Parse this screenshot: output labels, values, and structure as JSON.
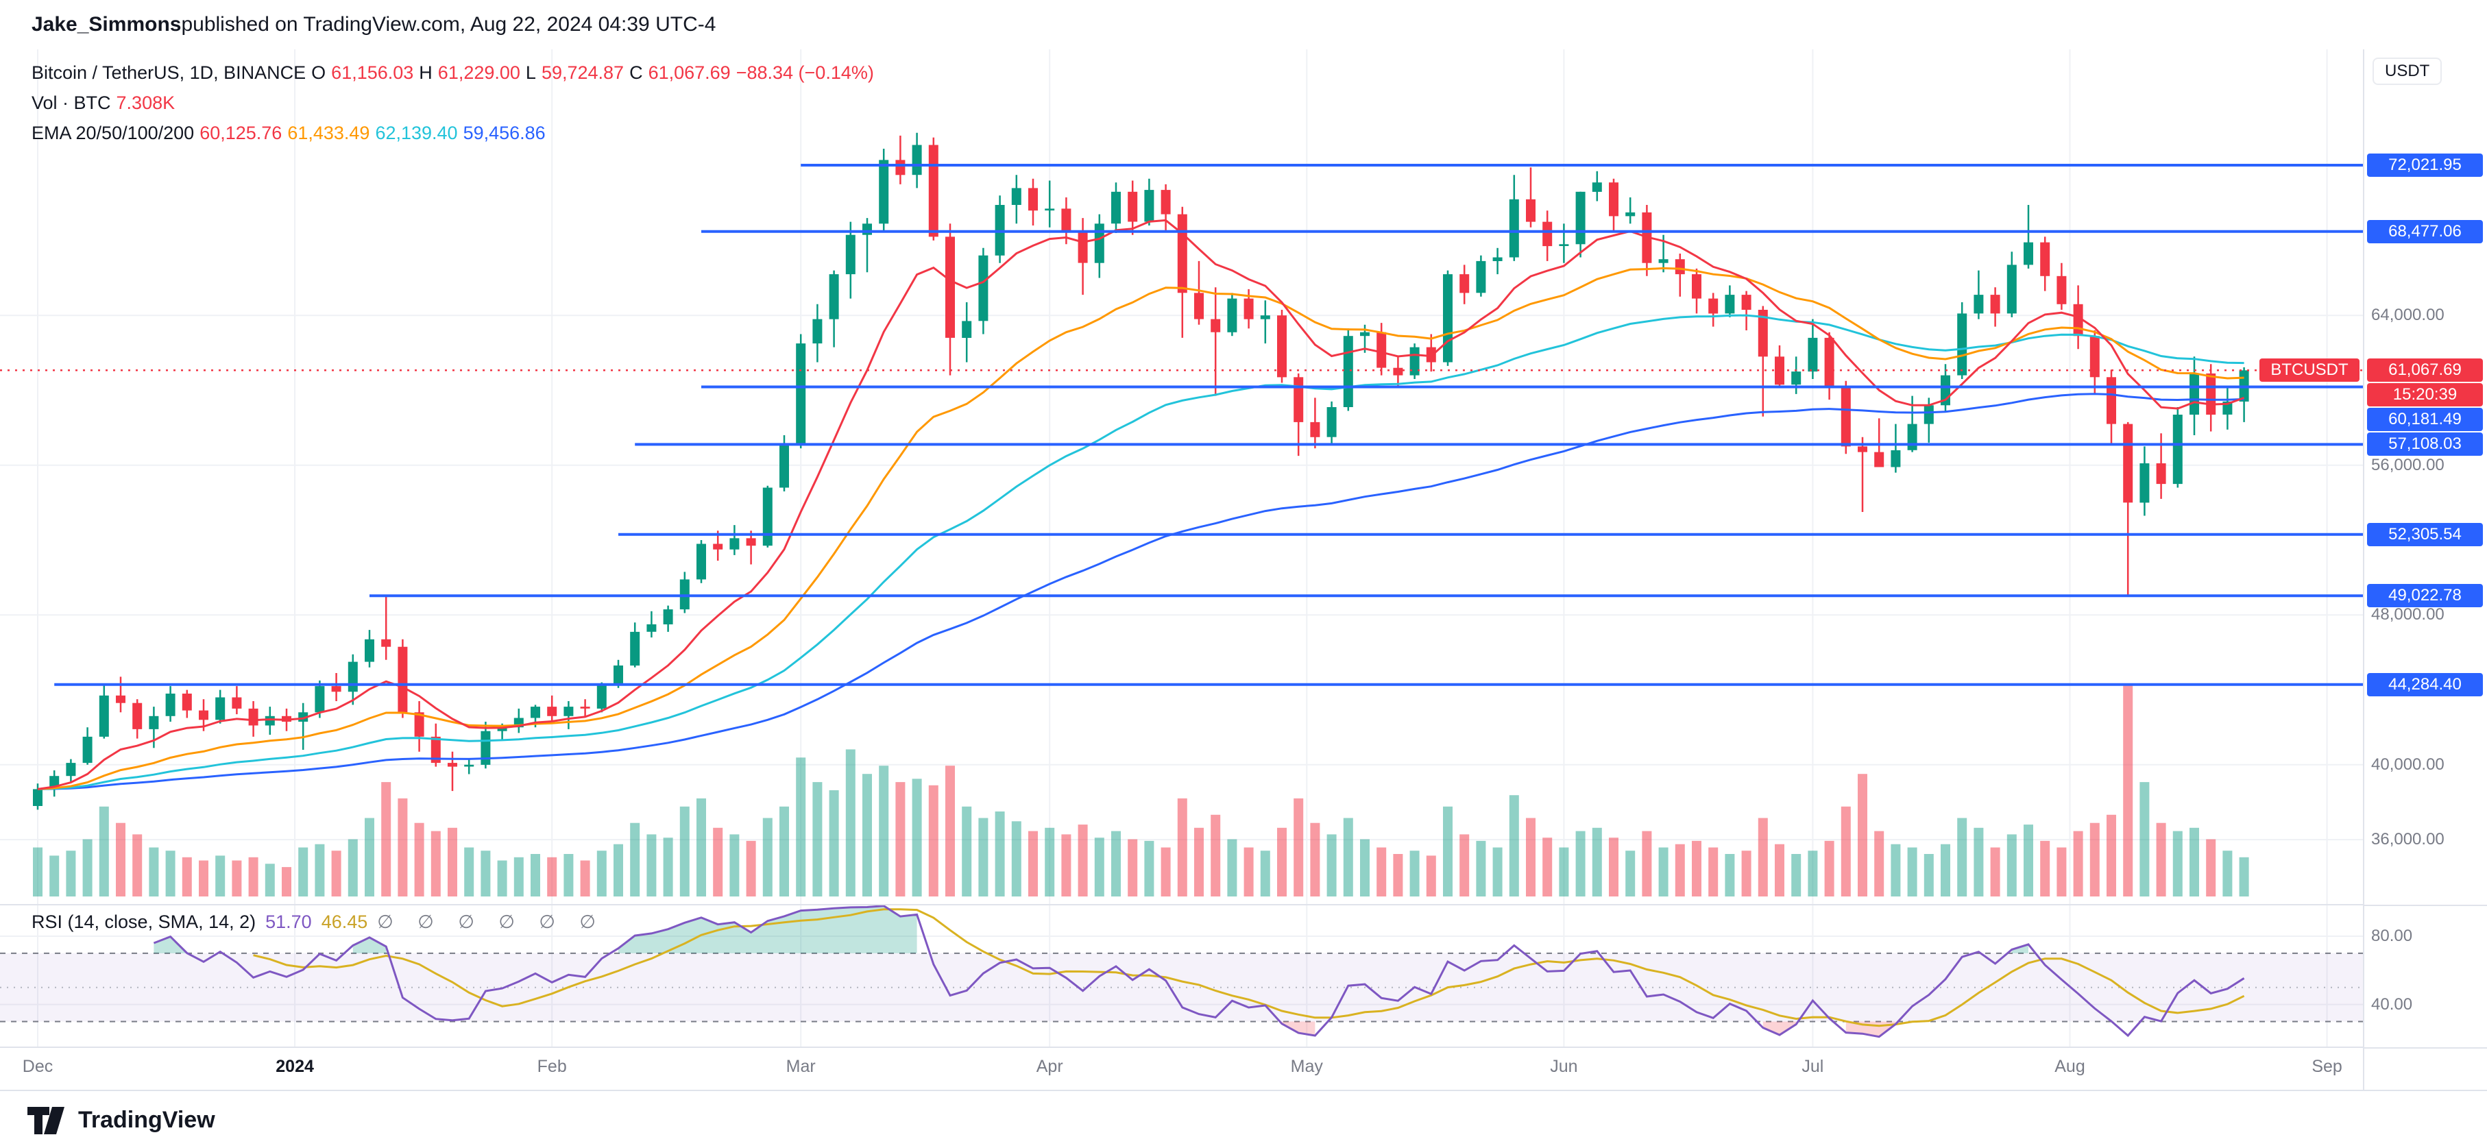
{
  "header": {
    "author": "Jake_Simmons",
    "suffix": " published on TradingView.com, Aug 22, 2024 04:39 UTC-4"
  },
  "legend": {
    "symbol": "Bitcoin / TetherUS, 1D, BINANCE",
    "o_label": "O",
    "o": "61,156.03",
    "h_label": "H",
    "h": "61,229.00",
    "l_label": "L",
    "l": "59,724.87",
    "c_label": "C",
    "c": "61,067.69",
    "change": "−88.34 (−0.14%)",
    "vol_label": "Vol · BTC",
    "vol_value": "7.308K",
    "ema_label": "EMA 20/50/100/200",
    "ema_values": [
      "60,125.76",
      "61,433.49",
      "62,139.40",
      "59,456.86"
    ]
  },
  "rsi_legend": {
    "label": "RSI (14, close, SMA, 14, 2)",
    "rsi_value": "51.70",
    "sma_value": "46.45",
    "empty_badges": "∅ ∅ ∅ ∅ ∅ ∅"
  },
  "price_axis": {
    "currency": "USDT",
    "grid_labels": [
      {
        "price": 64000,
        "text": "64,000.00"
      },
      {
        "price": 56000,
        "text": "56,000.00"
      },
      {
        "price": 48000,
        "text": "48,000.00"
      },
      {
        "price": 40000,
        "text": "40,000.00"
      },
      {
        "price": 36000,
        "text": "36,000.00"
      }
    ],
    "current": {
      "text": "61,067.69",
      "countdown": "15:20:39",
      "tag": "BTCUSDT"
    }
  },
  "rsi_axis": {
    "labels": [
      {
        "value": 80,
        "text": "80.00"
      },
      {
        "value": 40,
        "text": "40.00"
      }
    ]
  },
  "time_axis": {
    "labels": [
      {
        "pos": 0,
        "text": "Dec"
      },
      {
        "pos": 15.5,
        "text": "2024",
        "major": true
      },
      {
        "pos": 31,
        "text": "Feb"
      },
      {
        "pos": 46,
        "text": "Mar"
      },
      {
        "pos": 61,
        "text": "Apr"
      },
      {
        "pos": 76.5,
        "text": "May"
      },
      {
        "pos": 92,
        "text": "Jun"
      },
      {
        "pos": 107,
        "text": "Jul"
      },
      {
        "pos": 122.5,
        "text": "Aug"
      },
      {
        "pos": 138,
        "text": "Sep"
      }
    ]
  },
  "footer": {
    "brand": "TradingView"
  },
  "colors": {
    "up": "#089981",
    "down": "#F23645",
    "volume_up": "rgba(8,153,129,0.45)",
    "volume_down": "rgba(242,54,69,0.5)",
    "ema20": "#F23645",
    "ema50": "#FF9800",
    "ema100": "#22C3DA",
    "ema200": "#2962FF",
    "level_line": "#2962FF",
    "current_price": "#F23645",
    "rsi": "#7E57C2",
    "rsi_sma": "#D9B221",
    "rsi_band_fill": "rgba(126,87,194,0.08)",
    "grid": "#EFF1F5",
    "separator": "#E0E3EB",
    "axis_text": "#787B86"
  },
  "chart_data": {
    "type": "candlestick",
    "title": "Bitcoin / TetherUS, 1D, BINANCE",
    "symbol": "BTCUSDT",
    "exchange": "BINANCE",
    "interval": "1D",
    "price_axis_range": [
      34000,
      78200
    ],
    "candle_format": [
      "open",
      "high",
      "low",
      "close",
      "volume"
    ],
    "bar_span_days": 2,
    "candles": [
      [
        37800,
        39000,
        37600,
        38700,
        30
      ],
      [
        38700,
        39700,
        38300,
        39400,
        25
      ],
      [
        39400,
        40300,
        39100,
        40100,
        28
      ],
      [
        40100,
        42000,
        40000,
        41500,
        35
      ],
      [
        41500,
        44300,
        41400,
        43700,
        55
      ],
      [
        43700,
        44700,
        42800,
        43300,
        45
      ],
      [
        43300,
        43500,
        41400,
        41900,
        38
      ],
      [
        41900,
        43100,
        40900,
        42600,
        30
      ],
      [
        42600,
        44200,
        42300,
        43800,
        28
      ],
      [
        43800,
        44000,
        42500,
        42900,
        24
      ],
      [
        42900,
        43500,
        41800,
        42400,
        22
      ],
      [
        42400,
        44000,
        42200,
        43600,
        25
      ],
      [
        43600,
        44200,
        42700,
        43000,
        22
      ],
      [
        43000,
        43400,
        41500,
        42100,
        24
      ],
      [
        42100,
        43100,
        41600,
        42600,
        20
      ],
      [
        42600,
        43000,
        41800,
        42300,
        18
      ],
      [
        42300,
        43300,
        40800,
        42800,
        30
      ],
      [
        42800,
        44500,
        42500,
        44200,
        32
      ],
      [
        44200,
        44900,
        43400,
        43900,
        28
      ],
      [
        43900,
        45900,
        43200,
        45500,
        35
      ],
      [
        45500,
        47200,
        45200,
        46700,
        48
      ],
      [
        46700,
        48970,
        45600,
        46300,
        70
      ],
      [
        46300,
        46700,
        42500,
        42800,
        60
      ],
      [
        42800,
        43400,
        40700,
        41500,
        45
      ],
      [
        41500,
        42200,
        39900,
        40100,
        40
      ],
      [
        40100,
        40700,
        38600,
        39900,
        42
      ],
      [
        39900,
        40300,
        39500,
        40000,
        30
      ],
      [
        40000,
        42300,
        39800,
        41800,
        28
      ],
      [
        41800,
        42200,
        41300,
        42000,
        22
      ],
      [
        42000,
        43000,
        41700,
        42500,
        24
      ],
      [
        42500,
        43200,
        42000,
        43100,
        26
      ],
      [
        43100,
        43700,
        42300,
        42600,
        24
      ],
      [
        42600,
        43400,
        41900,
        43100,
        26
      ],
      [
        43100,
        43500,
        42600,
        43000,
        22
      ],
      [
        43000,
        44400,
        42800,
        44300,
        28
      ],
      [
        44300,
        45600,
        44100,
        45300,
        32
      ],
      [
        45300,
        47600,
        45200,
        47100,
        45
      ],
      [
        47100,
        48200,
        46800,
        47500,
        38
      ],
      [
        47500,
        48500,
        47100,
        48300,
        36
      ],
      [
        48300,
        50300,
        48100,
        49900,
        55
      ],
      [
        49900,
        52000,
        49700,
        51800,
        60
      ],
      [
        51800,
        52500,
        50900,
        51500,
        42
      ],
      [
        51500,
        52800,
        51200,
        52100,
        38
      ],
      [
        52100,
        52500,
        50700,
        51700,
        34
      ],
      [
        51700,
        54900,
        51600,
        54800,
        48
      ],
      [
        54800,
        57600,
        54600,
        57100,
        55
      ],
      [
        57100,
        63000,
        56900,
        62500,
        85
      ],
      [
        62500,
        64600,
        61500,
        63800,
        70
      ],
      [
        63800,
        66400,
        62300,
        66200,
        65
      ],
      [
        66200,
        69000,
        64900,
        68300,
        90
      ],
      [
        68300,
        69200,
        66300,
        68900,
        75
      ],
      [
        68900,
        72900,
        68500,
        72300,
        80
      ],
      [
        72300,
        73600,
        71000,
        71500,
        70
      ],
      [
        71500,
        73750,
        70800,
        73100,
        72
      ],
      [
        73100,
        73500,
        68000,
        68200,
        68
      ],
      [
        68200,
        68900,
        60800,
        62800,
        80
      ],
      [
        62800,
        64700,
        61500,
        63700,
        55
      ],
      [
        63700,
        67600,
        63000,
        67200,
        48
      ],
      [
        67200,
        70400,
        66800,
        69900,
        52
      ],
      [
        69900,
        71500,
        68900,
        70800,
        46
      ],
      [
        70800,
        71300,
        68800,
        69600,
        40
      ],
      [
        69600,
        71200,
        68700,
        69700,
        42
      ],
      [
        69700,
        70300,
        67800,
        68500,
        38
      ],
      [
        68500,
        69200,
        65100,
        66800,
        44
      ],
      [
        66800,
        69400,
        66000,
        68900,
        36
      ],
      [
        68900,
        71100,
        68400,
        70600,
        40
      ],
      [
        70600,
        71200,
        68300,
        69000,
        35
      ],
      [
        69000,
        71300,
        68800,
        70700,
        34
      ],
      [
        70700,
        71000,
        68500,
        69400,
        30
      ],
      [
        69400,
        69800,
        62800,
        65200,
        60
      ],
      [
        65200,
        66900,
        63500,
        63800,
        42
      ],
      [
        63800,
        65500,
        59700,
        63100,
        50
      ],
      [
        63100,
        65200,
        62900,
        64900,
        35
      ],
      [
        64900,
        65400,
        63300,
        63800,
        30
      ],
      [
        63800,
        64800,
        62500,
        64000,
        28
      ],
      [
        64000,
        64300,
        60400,
        60700,
        42
      ],
      [
        60700,
        60900,
        56500,
        58300,
        60
      ],
      [
        58300,
        59600,
        56900,
        57500,
        45
      ],
      [
        57500,
        59400,
        57100,
        59100,
        38
      ],
      [
        59100,
        63300,
        58900,
        62900,
        48
      ],
      [
        62900,
        63500,
        62000,
        63100,
        35
      ],
      [
        63100,
        63600,
        60800,
        61200,
        30
      ],
      [
        61200,
        61800,
        60200,
        60800,
        26
      ],
      [
        60800,
        62500,
        60600,
        62300,
        28
      ],
      [
        62300,
        63000,
        61000,
        61500,
        25
      ],
      [
        61500,
        66400,
        61300,
        66200,
        55
      ],
      [
        66200,
        66700,
        64600,
        65200,
        38
      ],
      [
        65200,
        67200,
        65000,
        66900,
        34
      ],
      [
        66900,
        67600,
        66200,
        67100,
        30
      ],
      [
        67100,
        71500,
        66900,
        70200,
        62
      ],
      [
        70200,
        71900,
        68700,
        69000,
        48
      ],
      [
        69000,
        69600,
        66900,
        67700,
        36
      ],
      [
        67700,
        68900,
        66800,
        67800,
        30
      ],
      [
        67800,
        70600,
        67100,
        70600,
        40
      ],
      [
        70600,
        71700,
        70100,
        71100,
        42
      ],
      [
        71100,
        71300,
        68500,
        69300,
        36
      ],
      [
        69300,
        70300,
        68900,
        69500,
        28
      ],
      [
        69500,
        69900,
        66100,
        66800,
        40
      ],
      [
        66800,
        68300,
        66300,
        67000,
        30
      ],
      [
        67000,
        67300,
        65000,
        66200,
        32
      ],
      [
        66200,
        66500,
        64100,
        64900,
        34
      ],
      [
        64900,
        65200,
        63400,
        64100,
        30
      ],
      [
        64100,
        65600,
        63900,
        65100,
        26
      ],
      [
        65100,
        65300,
        63200,
        64300,
        28
      ],
      [
        64300,
        64500,
        58600,
        61800,
        48
      ],
      [
        61800,
        62400,
        60200,
        60300,
        32
      ],
      [
        60300,
        61800,
        59800,
        61000,
        26
      ],
      [
        61000,
        63800,
        60600,
        62800,
        28
      ],
      [
        62800,
        63100,
        59500,
        60200,
        34
      ],
      [
        60200,
        60500,
        56600,
        57000,
        55
      ],
      [
        57000,
        57500,
        53500,
        56700,
        75
      ],
      [
        56700,
        58500,
        55900,
        55900,
        40
      ],
      [
        55900,
        58200,
        55600,
        56800,
        32
      ],
      [
        56800,
        59700,
        56700,
        58200,
        30
      ],
      [
        58200,
        59600,
        57200,
        59200,
        26
      ],
      [
        59200,
        61400,
        58900,
        60800,
        32
      ],
      [
        60800,
        64700,
        60600,
        64100,
        48
      ],
      [
        64100,
        66400,
        63800,
        65100,
        42
      ],
      [
        65100,
        65500,
        63400,
        64100,
        30
      ],
      [
        64100,
        67400,
        63900,
        66700,
        38
      ],
      [
        66700,
        69900,
        66500,
        67900,
        44
      ],
      [
        67900,
        68200,
        65300,
        66100,
        34
      ],
      [
        66100,
        66800,
        64300,
        64600,
        30
      ],
      [
        64600,
        65600,
        62200,
        62900,
        40
      ],
      [
        62900,
        63200,
        59800,
        60700,
        45
      ],
      [
        60700,
        61100,
        57100,
        58200,
        50
      ],
      [
        58200,
        58300,
        49000,
        54000,
        130
      ],
      [
        54000,
        57000,
        53300,
        56100,
        70
      ],
      [
        56100,
        57700,
        54200,
        55000,
        45
      ],
      [
        55000,
        59100,
        54800,
        58700,
        40
      ],
      [
        58700,
        61800,
        57600,
        60900,
        42
      ],
      [
        60900,
        61400,
        57800,
        58700,
        35
      ],
      [
        58700,
        60200,
        57900,
        59400,
        28
      ],
      [
        59400,
        61229,
        58300,
        61067.69,
        24
      ]
    ],
    "levels": [
      {
        "price": 72021.95,
        "label": "72,021.95",
        "start_index": 46
      },
      {
        "price": 68477.06,
        "label": "68,477.06",
        "start_index": 40
      },
      {
        "price": 60181.49,
        "label": "60,181.49",
        "start_index": 40
      },
      {
        "price": 57108.03,
        "label": "57,108.03",
        "start_index": 36
      },
      {
        "price": 52305.54,
        "label": "52,305.54",
        "start_index": 35
      },
      {
        "price": 49022.78,
        "label": "49,022.78",
        "start_index": 20
      },
      {
        "price": 44284.4,
        "label": "44,284.40",
        "start_index": 1
      }
    ],
    "current_price": 61067.69,
    "indicators": {
      "emas": [
        20,
        50,
        100,
        200
      ],
      "rsi": {
        "length": 14,
        "source": "close",
        "smoothing": "SMA",
        "smoothing_length": 14,
        "bands": [
          70,
          30,
          50
        ]
      }
    }
  }
}
